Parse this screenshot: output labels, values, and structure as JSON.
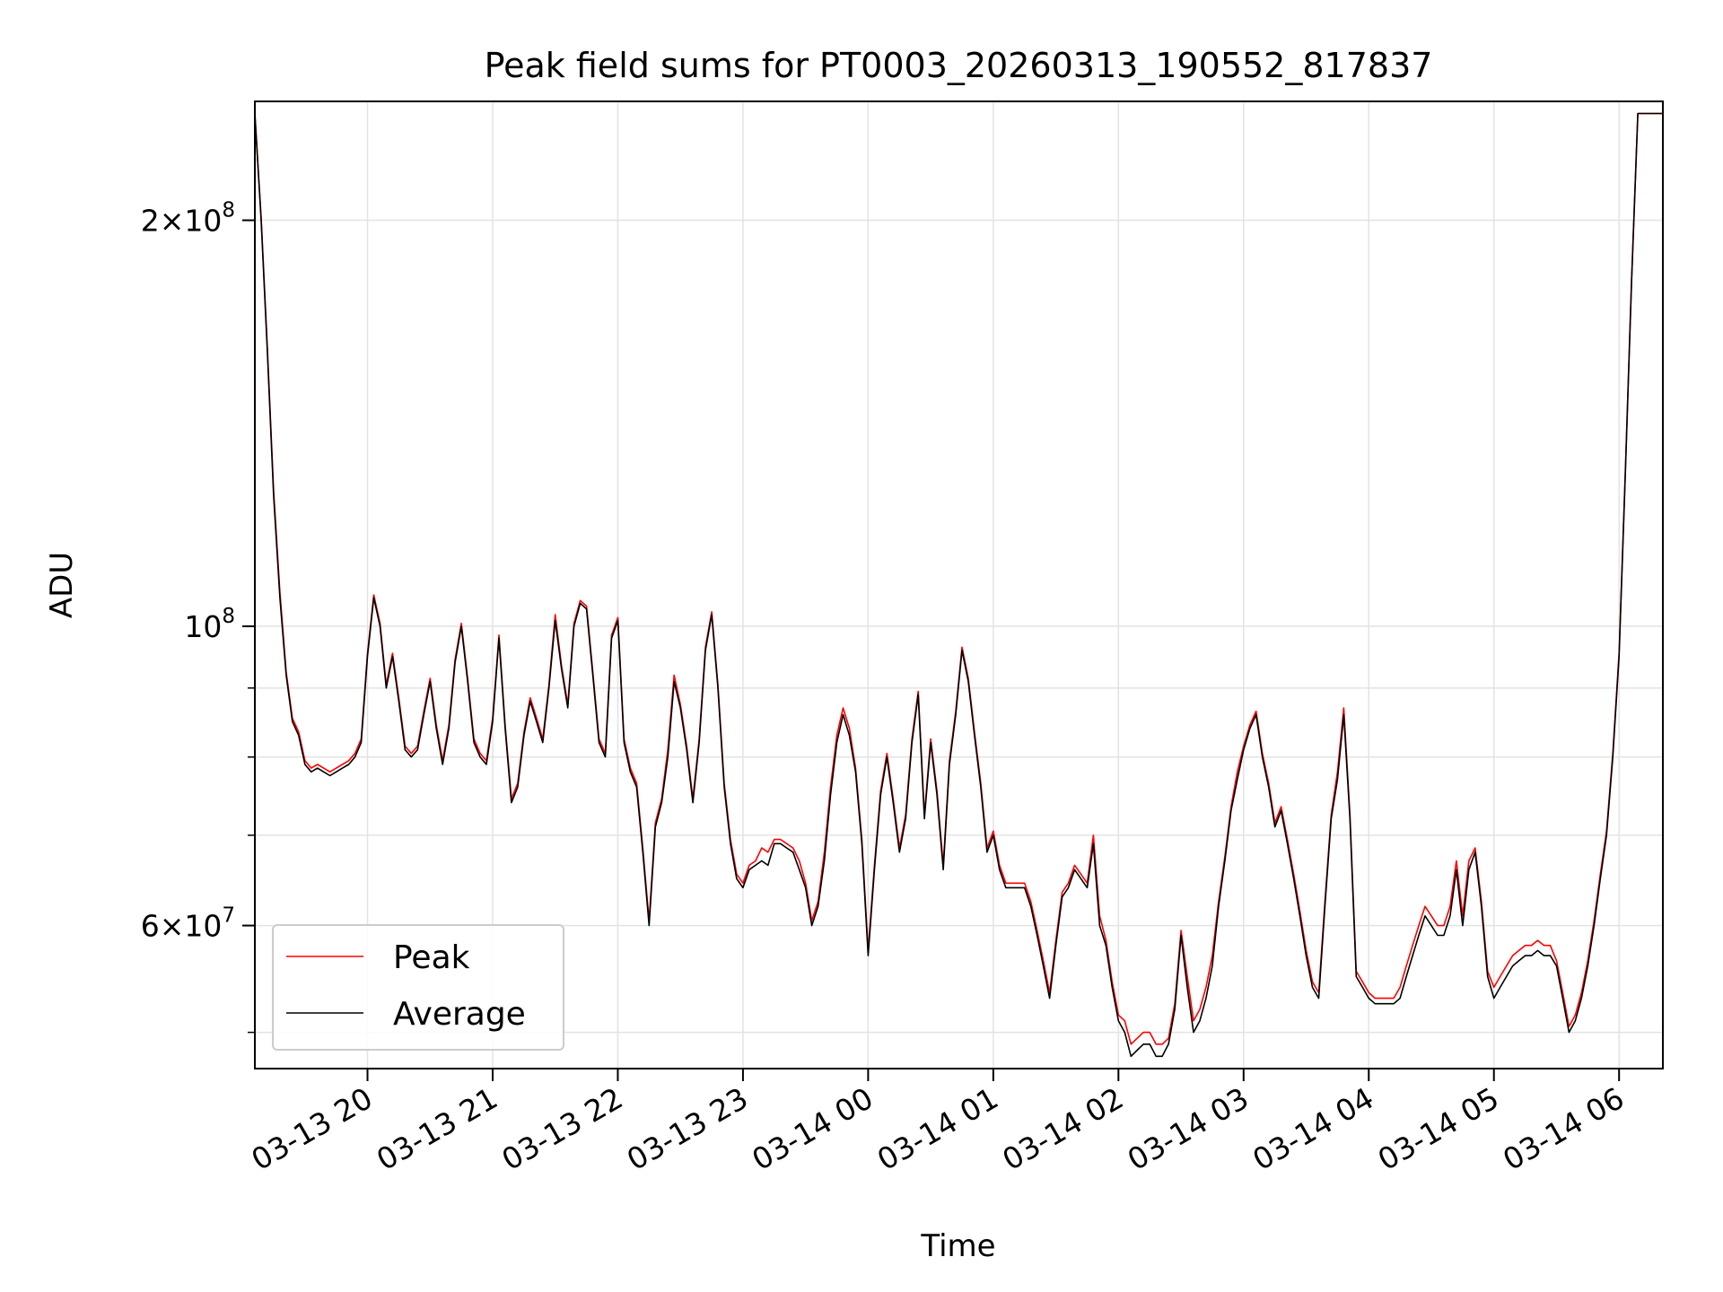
{
  "chart_data": {
    "type": "line",
    "title": "Peak field sums for PT0003_20260313_190552_817837",
    "xlabel": "Time",
    "ylabel": "ADU",
    "yscale": "log",
    "ylim": [
      47000000,
      245000000
    ],
    "xlim": [
      "2026-03-13 19:06",
      "2026-03-14 06:21"
    ],
    "grid": true,
    "legend": {
      "position": "lower-left",
      "entries": [
        "Peak",
        "Average"
      ]
    },
    "x_ticks": [
      {
        "value": "2026-03-13 20:00",
        "label": "03-13 20"
      },
      {
        "value": "2026-03-13 21:00",
        "label": "03-13 21"
      },
      {
        "value": "2026-03-13 22:00",
        "label": "03-13 22"
      },
      {
        "value": "2026-03-13 23:00",
        "label": "03-13 23"
      },
      {
        "value": "2026-03-14 00:00",
        "label": "03-14 00"
      },
      {
        "value": "2026-03-14 01:00",
        "label": "03-14 01"
      },
      {
        "value": "2026-03-14 02:00",
        "label": "03-14 02"
      },
      {
        "value": "2026-03-14 03:00",
        "label": "03-14 03"
      },
      {
        "value": "2026-03-14 04:00",
        "label": "03-14 04"
      },
      {
        "value": "2026-03-14 05:00",
        "label": "03-14 05"
      },
      {
        "value": "2026-03-14 06:00",
        "label": "03-14 06"
      }
    ],
    "y_major_ticks": [
      {
        "value": 60000000,
        "mantissa": "6",
        "exp": "7"
      },
      {
        "value": 100000000,
        "mantissa": "",
        "exp": "8"
      },
      {
        "value": 200000000,
        "mantissa": "2",
        "exp": "8"
      }
    ],
    "y_minor_ticks": [
      50000000,
      70000000,
      80000000,
      90000000
    ],
    "colors": {
      "Peak": "#ff0000",
      "Average": "#000000"
    },
    "x": [
      "2026-03-13 19:06",
      "2026-03-13 19:09",
      "2026-03-13 19:12",
      "2026-03-13 19:15",
      "2026-03-13 19:18",
      "2026-03-13 19:21",
      "2026-03-13 19:24",
      "2026-03-13 19:27",
      "2026-03-13 19:30",
      "2026-03-13 19:33",
      "2026-03-13 19:36",
      "2026-03-13 19:39",
      "2026-03-13 19:42",
      "2026-03-13 19:45",
      "2026-03-13 19:48",
      "2026-03-13 19:51",
      "2026-03-13 19:54",
      "2026-03-13 19:57",
      "2026-03-13 20:00",
      "2026-03-13 20:03",
      "2026-03-13 20:06",
      "2026-03-13 20:09",
      "2026-03-13 20:12",
      "2026-03-13 20:15",
      "2026-03-13 20:18",
      "2026-03-13 20:21",
      "2026-03-13 20:24",
      "2026-03-13 20:27",
      "2026-03-13 20:30",
      "2026-03-13 20:33",
      "2026-03-13 20:36",
      "2026-03-13 20:39",
      "2026-03-13 20:42",
      "2026-03-13 20:45",
      "2026-03-13 20:48",
      "2026-03-13 20:51",
      "2026-03-13 20:54",
      "2026-03-13 20:57",
      "2026-03-13 21:00",
      "2026-03-13 21:03",
      "2026-03-13 21:06",
      "2026-03-13 21:09",
      "2026-03-13 21:12",
      "2026-03-13 21:15",
      "2026-03-13 21:18",
      "2026-03-13 21:21",
      "2026-03-13 21:24",
      "2026-03-13 21:27",
      "2026-03-13 21:30",
      "2026-03-13 21:33",
      "2026-03-13 21:36",
      "2026-03-13 21:39",
      "2026-03-13 21:42",
      "2026-03-13 21:45",
      "2026-03-13 21:48",
      "2026-03-13 21:51",
      "2026-03-13 21:54",
      "2026-03-13 21:57",
      "2026-03-13 22:00",
      "2026-03-13 22:03",
      "2026-03-13 22:06",
      "2026-03-13 22:09",
      "2026-03-13 22:12",
      "2026-03-13 22:15",
      "2026-03-13 22:18",
      "2026-03-13 22:21",
      "2026-03-13 22:24",
      "2026-03-13 22:27",
      "2026-03-13 22:30",
      "2026-03-13 22:33",
      "2026-03-13 22:36",
      "2026-03-13 22:39",
      "2026-03-13 22:42",
      "2026-03-13 22:45",
      "2026-03-13 22:48",
      "2026-03-13 22:51",
      "2026-03-13 22:54",
      "2026-03-13 22:57",
      "2026-03-13 23:00",
      "2026-03-13 23:03",
      "2026-03-13 23:06",
      "2026-03-13 23:09",
      "2026-03-13 23:12",
      "2026-03-13 23:15",
      "2026-03-13 23:18",
      "2026-03-13 23:21",
      "2026-03-13 23:24",
      "2026-03-13 23:27",
      "2026-03-13 23:30",
      "2026-03-13 23:33",
      "2026-03-13 23:36",
      "2026-03-13 23:39",
      "2026-03-13 23:42",
      "2026-03-13 23:45",
      "2026-03-13 23:48",
      "2026-03-13 23:51",
      "2026-03-13 23:54",
      "2026-03-13 23:57",
      "2026-03-14 00:00",
      "2026-03-14 00:03",
      "2026-03-14 00:06",
      "2026-03-14 00:09",
      "2026-03-14 00:12",
      "2026-03-14 00:15",
      "2026-03-14 00:18",
      "2026-03-14 00:21",
      "2026-03-14 00:24",
      "2026-03-14 00:27",
      "2026-03-14 00:30",
      "2026-03-14 00:33",
      "2026-03-14 00:36",
      "2026-03-14 00:39",
      "2026-03-14 00:42",
      "2026-03-14 00:45",
      "2026-03-14 00:48",
      "2026-03-14 00:51",
      "2026-03-14 00:54",
      "2026-03-14 00:57",
      "2026-03-14 01:00",
      "2026-03-14 01:03",
      "2026-03-14 01:06",
      "2026-03-14 01:09",
      "2026-03-14 01:12",
      "2026-03-14 01:15",
      "2026-03-14 01:18",
      "2026-03-14 01:21",
      "2026-03-14 01:24",
      "2026-03-14 01:27",
      "2026-03-14 01:30",
      "2026-03-14 01:33",
      "2026-03-14 01:36",
      "2026-03-14 01:39",
      "2026-03-14 01:42",
      "2026-03-14 01:45",
      "2026-03-14 01:48",
      "2026-03-14 01:51",
      "2026-03-14 01:54",
      "2026-03-14 01:57",
      "2026-03-14 02:00",
      "2026-03-14 02:03",
      "2026-03-14 02:06",
      "2026-03-14 02:09",
      "2026-03-14 02:12",
      "2026-03-14 02:15",
      "2026-03-14 02:18",
      "2026-03-14 02:21",
      "2026-03-14 02:24",
      "2026-03-14 02:27",
      "2026-03-14 02:30",
      "2026-03-14 02:33",
      "2026-03-14 02:36",
      "2026-03-14 02:39",
      "2026-03-14 02:42",
      "2026-03-14 02:45",
      "2026-03-14 02:48",
      "2026-03-14 02:51",
      "2026-03-14 02:54",
      "2026-03-14 02:57",
      "2026-03-14 03:00",
      "2026-03-14 03:03",
      "2026-03-14 03:06",
      "2026-03-14 03:09",
      "2026-03-14 03:12",
      "2026-03-14 03:15",
      "2026-03-14 03:18",
      "2026-03-14 03:21",
      "2026-03-14 03:24",
      "2026-03-14 03:27",
      "2026-03-14 03:30",
      "2026-03-14 03:33",
      "2026-03-14 03:36",
      "2026-03-14 03:39",
      "2026-03-14 03:42",
      "2026-03-14 03:45",
      "2026-03-14 03:48",
      "2026-03-14 03:51",
      "2026-03-14 03:54",
      "2026-03-14 03:57",
      "2026-03-14 04:00",
      "2026-03-14 04:03",
      "2026-03-14 04:06",
      "2026-03-14 04:09",
      "2026-03-14 04:12",
      "2026-03-14 04:15",
      "2026-03-14 04:18",
      "2026-03-14 04:21",
      "2026-03-14 04:24",
      "2026-03-14 04:27",
      "2026-03-14 04:30",
      "2026-03-14 04:33",
      "2026-03-14 04:36",
      "2026-03-14 04:39",
      "2026-03-14 04:42",
      "2026-03-14 04:45",
      "2026-03-14 04:48",
      "2026-03-14 04:51",
      "2026-03-14 04:54",
      "2026-03-14 04:57",
      "2026-03-14 05:00",
      "2026-03-14 05:03",
      "2026-03-14 05:06",
      "2026-03-14 05:09",
      "2026-03-14 05:12",
      "2026-03-14 05:15",
      "2026-03-14 05:18",
      "2026-03-14 05:21",
      "2026-03-14 05:24",
      "2026-03-14 05:27",
      "2026-03-14 05:30",
      "2026-03-14 05:33",
      "2026-03-14 05:36",
      "2026-03-14 05:39",
      "2026-03-14 05:42",
      "2026-03-14 05:45",
      "2026-03-14 05:48",
      "2026-03-14 05:51",
      "2026-03-14 05:54",
      "2026-03-14 05:57",
      "2026-03-14 06:00",
      "2026-03-14 06:03",
      "2026-03-14 06:06",
      "2026-03-14 06:09",
      "2026-03-14 06:12",
      "2026-03-14 06:15",
      "2026-03-14 06:18",
      "2026-03-14 06:21"
    ],
    "series": [
      {
        "name": "Average",
        "color": "#000000",
        "values": [
          240000000,
          200000000,
          160000000,
          125000000,
          105000000,
          92000000,
          85000000,
          83000000,
          79000000,
          78000000,
          78500000,
          78000000,
          77500000,
          78000000,
          78500000,
          79000000,
          80000000,
          82000000,
          95000000,
          105000000,
          100000000,
          90000000,
          95000000,
          88000000,
          81000000,
          80000000,
          81000000,
          86000000,
          91000000,
          84000000,
          79000000,
          84000000,
          94000000,
          100000000,
          91000000,
          82000000,
          80000000,
          79000000,
          85000000,
          98000000,
          84000000,
          74000000,
          76000000,
          83000000,
          88000000,
          85000000,
          82000000,
          90000000,
          101000000,
          93000000,
          87000000,
          100000000,
          104000000,
          103000000,
          92000000,
          82000000,
          80000000,
          98000000,
          101000000,
          82000000,
          78000000,
          76000000,
          68000000,
          60000000,
          71000000,
          74000000,
          80000000,
          91000000,
          87000000,
          81000000,
          74000000,
          82000000,
          96000000,
          102000000,
          90000000,
          76000000,
          69000000,
          65000000,
          64000000,
          66000000,
          66500000,
          67000000,
          66500000,
          69000000,
          69000000,
          68500000,
          68000000,
          66000000,
          64000000,
          60000000,
          62000000,
          67000000,
          75000000,
          82000000,
          86000000,
          83000000,
          78000000,
          69000000,
          57000000,
          66000000,
          75000000,
          80000000,
          74000000,
          68000000,
          72000000,
          82000000,
          89000000,
          72000000,
          82000000,
          75000000,
          66000000,
          79000000,
          86000000,
          96000000,
          91000000,
          83000000,
          76000000,
          68000000,
          70000000,
          66000000,
          64000000,
          64000000,
          64000000,
          64000000,
          62000000,
          59000000,
          56000000,
          53000000,
          58000000,
          63000000,
          64000000,
          66000000,
          65000000,
          64000000,
          69000000,
          60000000,
          58000000,
          54000000,
          51000000,
          50000000,
          48000000,
          48500000,
          49000000,
          49000000,
          48000000,
          48000000,
          49000000,
          52000000,
          59000000,
          54000000,
          50000000,
          51000000,
          53000000,
          56000000,
          62000000,
          67000000,
          73000000,
          77000000,
          81000000,
          84000000,
          86000000,
          80000000,
          76000000,
          71000000,
          73000000,
          69000000,
          65000000,
          61000000,
          57000000,
          54000000,
          53000000,
          62000000,
          72000000,
          77000000,
          86000000,
          72000000,
          55000000,
          54000000,
          53000000,
          52500000,
          52500000,
          52500000,
          52500000,
          53000000,
          55000000,
          57000000,
          59000000,
          61000000,
          60000000,
          59000000,
          59000000,
          61000000,
          66000000,
          60000000,
          66000000,
          68000000,
          62000000,
          55000000,
          53000000,
          54000000,
          55000000,
          56000000,
          56500000,
          57000000,
          57000000,
          57500000,
          57000000,
          57000000,
          56000000,
          53000000,
          50000000,
          51000000,
          53000000,
          56000000,
          60000000,
          65000000,
          70000000,
          80000000,
          95000000,
          130000000,
          180000000,
          240000000,
          240000000,
          240000000,
          240000000,
          240000000
        ]
      },
      {
        "name": "Peak",
        "color": "#ff0000",
        "values": [
          240000000,
          201000000,
          161000000,
          126000000,
          106000000,
          92500000,
          85500000,
          83500000,
          79500000,
          78500000,
          79000000,
          78500000,
          78000000,
          78500000,
          79000000,
          79500000,
          80500000,
          82500000,
          95500000,
          105500000,
          100500000,
          90500000,
          95500000,
          88500000,
          81500000,
          80500000,
          81500000,
          86500000,
          91500000,
          84500000,
          79500000,
          84500000,
          94500000,
          100500000,
          91500000,
          82500000,
          80500000,
          79500000,
          85500000,
          98500000,
          84500000,
          74500000,
          76500000,
          83500000,
          88500000,
          85500000,
          82500000,
          90500000,
          102000000,
          93500000,
          87500000,
          100500000,
          104500000,
          103500000,
          92500000,
          82500000,
          80500000,
          98500000,
          101500000,
          82500000,
          78500000,
          76500000,
          68500000,
          60500000,
          71500000,
          74500000,
          81000000,
          92000000,
          87500000,
          81500000,
          74500000,
          82500000,
          96500000,
          102500000,
          90500000,
          76500000,
          69500000,
          65500000,
          64500000,
          66500000,
          67000000,
          68500000,
          68000000,
          69500000,
          69500000,
          69000000,
          68500000,
          67000000,
          64500000,
          60500000,
          62500000,
          68000000,
          76000000,
          83000000,
          87000000,
          84000000,
          78500000,
          69500000,
          57500000,
          66500000,
          75500000,
          80500000,
          74500000,
          68500000,
          72500000,
          82500000,
          89500000,
          72500000,
          82500000,
          75500000,
          66500000,
          79500000,
          86500000,
          96500000,
          91500000,
          83500000,
          76500000,
          68500000,
          70500000,
          66500000,
          64500000,
          64500000,
          64500000,
          64500000,
          62500000,
          59500000,
          56500000,
          53500000,
          58500000,
          63500000,
          64500000,
          66500000,
          65500000,
          64500000,
          70000000,
          61000000,
          58500000,
          54500000,
          51500000,
          51000000,
          49000000,
          49500000,
          50000000,
          50000000,
          49000000,
          49000000,
          49500000,
          52500000,
          59500000,
          55000000,
          51000000,
          52000000,
          54000000,
          57000000,
          62500000,
          67500000,
          73500000,
          78000000,
          81500000,
          84500000,
          86500000,
          80500000,
          76500000,
          71500000,
          73500000,
          69500000,
          65500000,
          61500000,
          57500000,
          54500000,
          53500000,
          62500000,
          72500000,
          78000000,
          87000000,
          72500000,
          55500000,
          54500000,
          53500000,
          53000000,
          53000000,
          53000000,
          53000000,
          54000000,
          56000000,
          58000000,
          60000000,
          62000000,
          61000000,
          60000000,
          60000000,
          62000000,
          67000000,
          61000000,
          67000000,
          68500000,
          62500000,
          55500000,
          54000000,
          55000000,
          56000000,
          57000000,
          57500000,
          58000000,
          58000000,
          58500000,
          58000000,
          58000000,
          56500000,
          53500000,
          50500000,
          51500000,
          53500000,
          56500000,
          60500000,
          65500000,
          70500000,
          80500000,
          95500000,
          130500000,
          180500000,
          240000000,
          240000000,
          240000000,
          240000000,
          240000000
        ]
      }
    ]
  }
}
